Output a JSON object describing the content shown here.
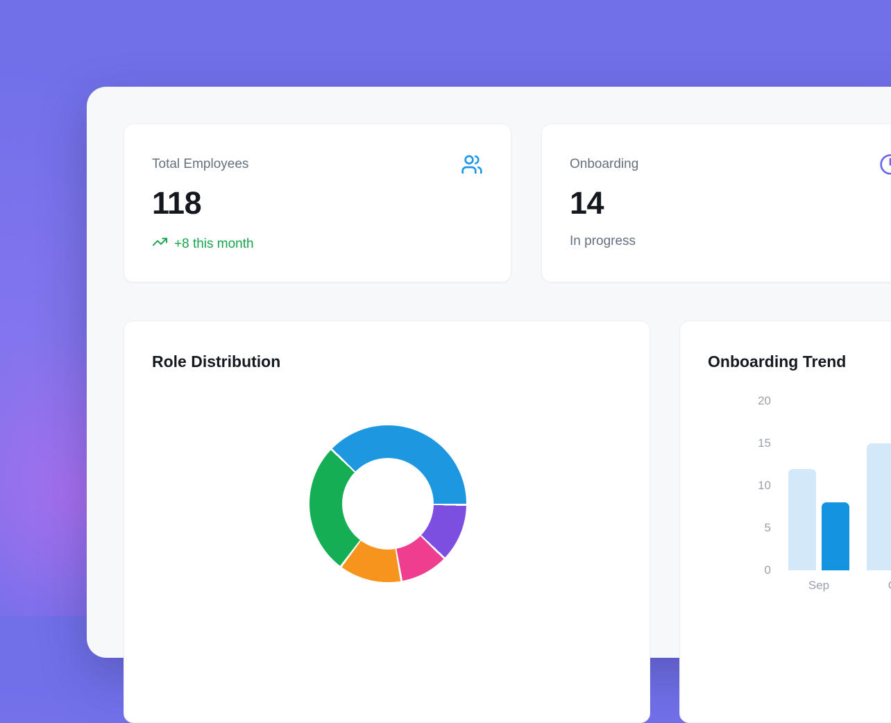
{
  "theme": {
    "background": "#7170E9",
    "panel": "#F7F8FA",
    "card": "#FFFFFF",
    "accent_blue": "#1C96E8",
    "accent_indigo": "#6A66EE",
    "positive_green": "#17A34A",
    "muted_text": "#64707E",
    "heading_text": "#14171E",
    "axis_text": "#9AA1AC"
  },
  "stats": [
    {
      "label": "Total Employees",
      "value": "118",
      "delta": "+8 this month",
      "icon": "users-icon",
      "icon_color": "#1C96E8",
      "delta_icon": "trending-up-icon"
    },
    {
      "label": "Onboarding",
      "value": "14",
      "sub": "In progress",
      "icon": "clock-icon",
      "icon_color": "#6A66EE"
    }
  ],
  "chart_data": [
    {
      "type": "donut",
      "title": "Role Distribution",
      "start_angle_deg": -46,
      "cutout_ratio": 0.58,
      "segments": [
        {
          "name": "segment-blue",
          "color": "#1D97E0",
          "share_pct": 38
        },
        {
          "name": "segment-purple",
          "color": "#7C4FE0",
          "share_pct": 12
        },
        {
          "name": "segment-pink",
          "color": "#EF3D8F",
          "share_pct": 10
        },
        {
          "name": "segment-orange",
          "color": "#F7941E",
          "share_pct": 13
        },
        {
          "name": "segment-green",
          "color": "#16AE54",
          "share_pct": 27
        }
      ]
    },
    {
      "type": "bar",
      "title": "Onboarding Trend",
      "categories": [
        "Sep",
        "Oct"
      ],
      "series": [
        {
          "name": "series-light",
          "color": "#D3E8F9",
          "values": [
            12,
            15
          ]
        },
        {
          "name": "series-dark",
          "color": "#1493E0",
          "values": [
            8,
            null
          ]
        }
      ],
      "ylim": [
        0,
        20
      ],
      "yticks": [
        0,
        5,
        10,
        15,
        20
      ],
      "grid": false,
      "legend_position": "none"
    }
  ]
}
